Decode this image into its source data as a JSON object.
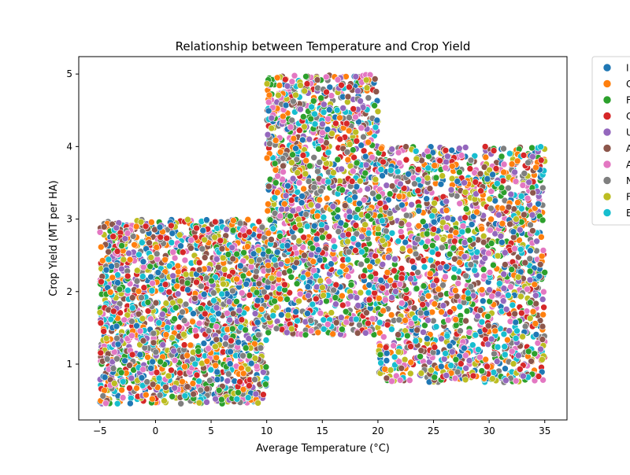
{
  "chart_data": {
    "type": "scatter",
    "title": "Relationship between Temperature and Crop Yield",
    "xlabel": "Average Temperature (°C)",
    "ylabel": "Crop Yield (MT per HA)",
    "xlim": [
      -6.9,
      37.0
    ],
    "ylim": [
      0.23,
      5.24
    ],
    "xticks": [
      -5,
      0,
      5,
      10,
      15,
      20,
      25,
      30,
      35
    ],
    "yticks": [
      1,
      2,
      3,
      4,
      5
    ],
    "grid": false,
    "legend_position": "outside-right",
    "point_color_field": "Country",
    "series": [
      {
        "label": "I",
        "color": "#1f77b4"
      },
      {
        "label": "C",
        "color": "#ff7f0e"
      },
      {
        "label": "F",
        "color": "#2ca02c"
      },
      {
        "label": "C",
        "color": "#d62728"
      },
      {
        "label": "U",
        "color": "#9467bd"
      },
      {
        "label": "A",
        "color": "#8c564b"
      },
      {
        "label": "A",
        "color": "#e377c2"
      },
      {
        "label": "N",
        "color": "#7f7f7f"
      },
      {
        "label": "F",
        "color": "#bcbd22"
      },
      {
        "label": "E",
        "color": "#17becf"
      }
    ],
    "regions": [
      {
        "x": [
          -5,
          10
        ],
        "y": [
          0.45,
          3.0
        ]
      },
      {
        "x": [
          10,
          20
        ],
        "y": [
          1.4,
          5.0
        ]
      },
      {
        "x": [
          20,
          35
        ],
        "y": [
          0.75,
          4.0
        ]
      }
    ]
  }
}
